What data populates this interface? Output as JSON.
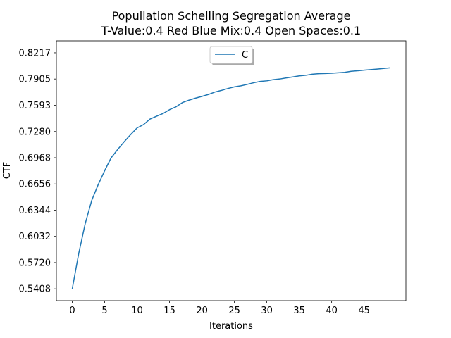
{
  "chart_data": {
    "type": "line",
    "title": "Popullation Schelling Segregation Average",
    "subtitle": "T-Value:0.4 Red Blue Mix:0.4 Open Spaces:0.1",
    "xlabel": "Iterations",
    "ylabel": "CTF",
    "xlim": [
      -2.45,
      51.45
    ],
    "ylim": [
      0.5267,
      0.8359
    ],
    "xticks": [
      0,
      5,
      10,
      15,
      20,
      25,
      30,
      35,
      40,
      45
    ],
    "yticks": [
      "0.5408",
      "0.5720",
      "0.6032",
      "0.6344",
      "0.6656",
      "0.6968",
      "0.7280",
      "0.7593",
      "0.7905",
      "0.8217"
    ],
    "grid": false,
    "legend_position": "top-center",
    "series": [
      {
        "name": "C",
        "color": "#1f77b4",
        "x": [
          0,
          1,
          2,
          3,
          4,
          5,
          6,
          7,
          8,
          9,
          10,
          11,
          12,
          13,
          14,
          15,
          16,
          17,
          18,
          19,
          20,
          21,
          22,
          23,
          24,
          25,
          26,
          27,
          28,
          29,
          30,
          31,
          32,
          33,
          34,
          35,
          36,
          37,
          38,
          39,
          40,
          41,
          42,
          43,
          44,
          45,
          46,
          47,
          48,
          49
        ],
        "y": [
          0.5408,
          0.583,
          0.6185,
          0.646,
          0.6648,
          0.6815,
          0.6968,
          0.7066,
          0.7158,
          0.7243,
          0.7323,
          0.7363,
          0.7428,
          0.7462,
          0.7494,
          0.754,
          0.7574,
          0.7625,
          0.7653,
          0.7677,
          0.7698,
          0.7721,
          0.775,
          0.7769,
          0.7792,
          0.7811,
          0.7824,
          0.7841,
          0.7861,
          0.7876,
          0.7883,
          0.7897,
          0.7905,
          0.7918,
          0.793,
          0.7942,
          0.7949,
          0.7962,
          0.7968,
          0.797,
          0.7974,
          0.7979,
          0.7984,
          0.7997,
          0.8003,
          0.801,
          0.8016,
          0.8023,
          0.803,
          0.8037
        ]
      }
    ]
  }
}
